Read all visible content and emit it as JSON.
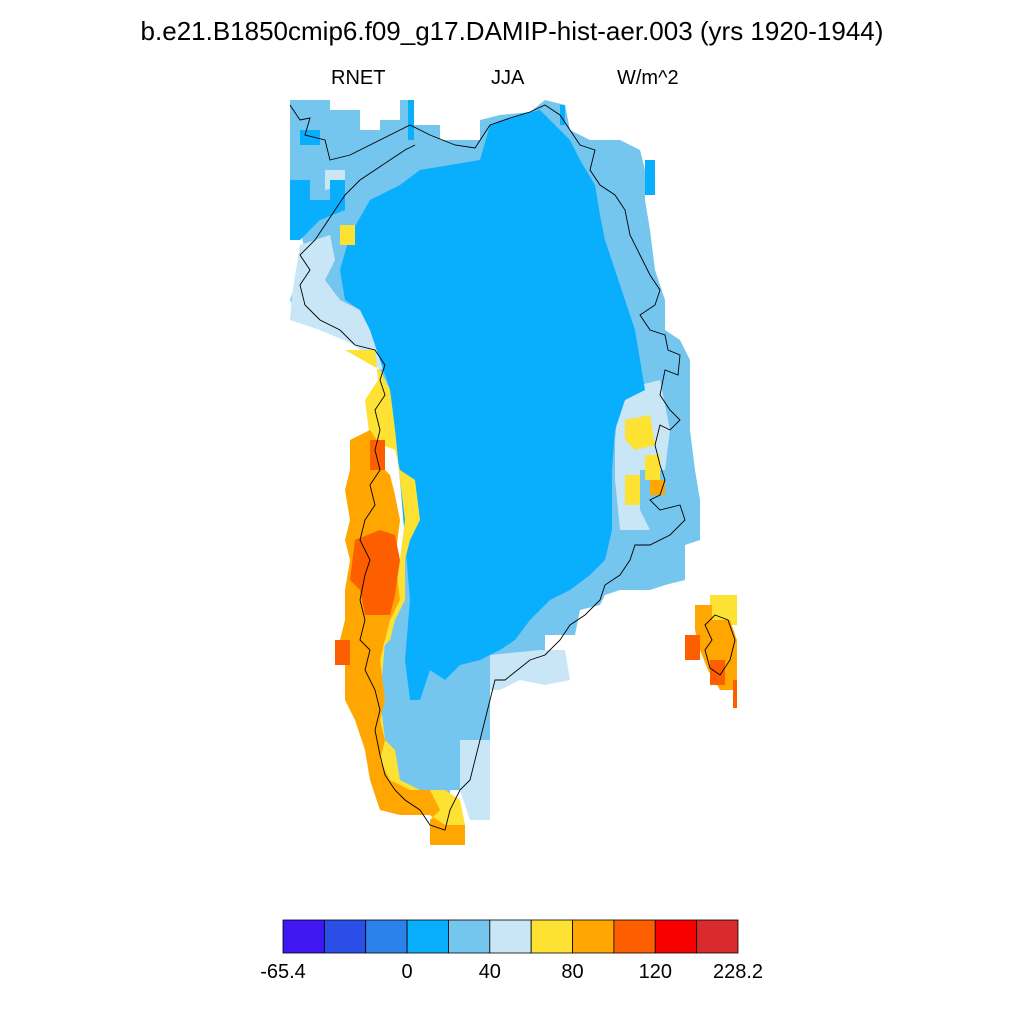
{
  "title": "b.e21.B1850cmip6.f09_g17.DAMIP-hist-aer.003 (yrs 1920-1944)",
  "subtitle": {
    "variable": "RNET",
    "season": "JJA",
    "units": "W/m^2"
  },
  "colorbar": {
    "colors": [
      "#3f17f2",
      "#2b4ee8",
      "#2b82eb",
      "#09aefc",
      "#74c6ef",
      "#c8e6f6",
      "#fde234",
      "#ffa600",
      "#fd5e00",
      "#f90000",
      "#d92b2d"
    ],
    "labels": [
      "-65.4",
      "",
      "",
      "0",
      "",
      "40",
      "",
      "80",
      "",
      "120",
      "",
      "228.2"
    ]
  },
  "legend_colors": {
    "ice_sheet": "#09aefc",
    "margin_light": "#74c6ef",
    "margin_pale": "#c8e6f6",
    "coast_yellow": "#fde234",
    "coast_orange": "#ffa600",
    "coast_dark_orange": "#fd5e00",
    "coast_red": "#f90000"
  }
}
